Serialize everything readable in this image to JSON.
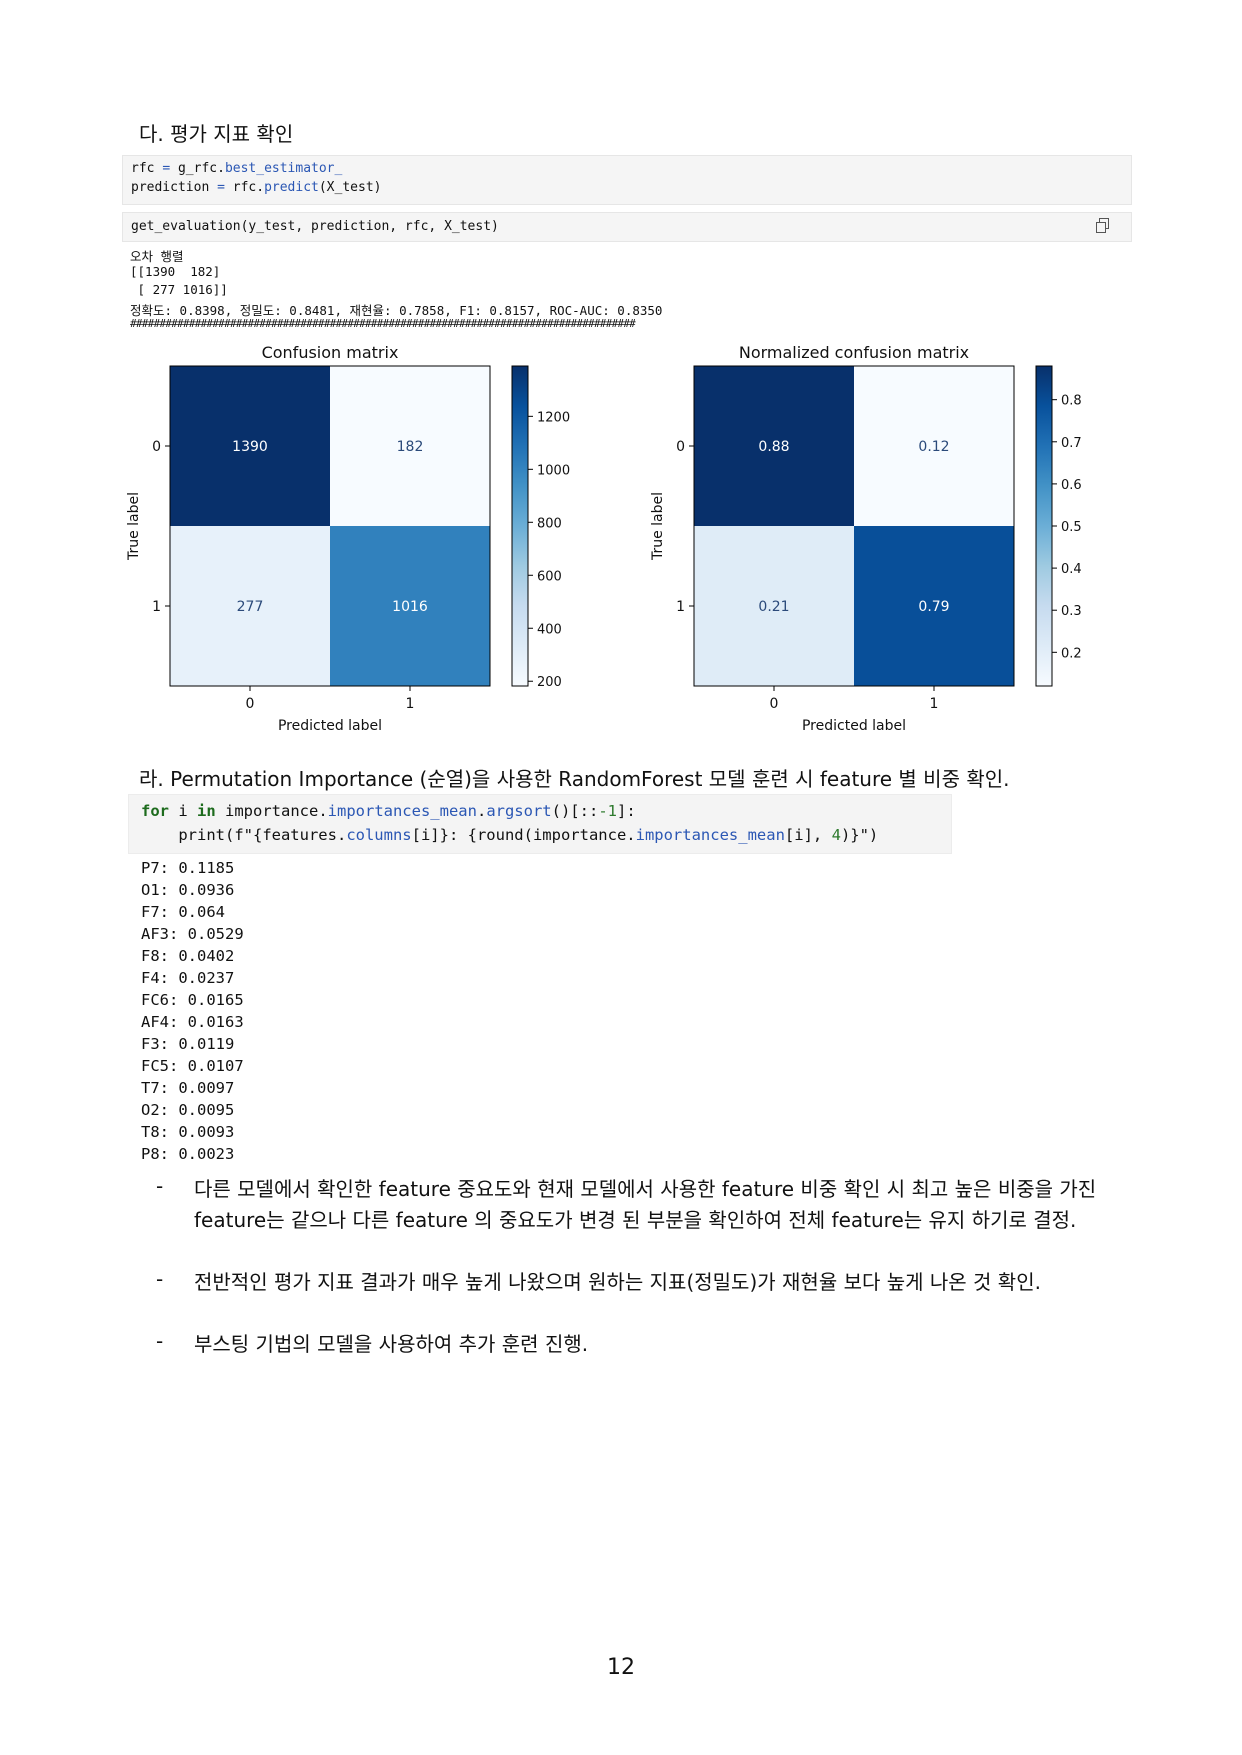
{
  "section_da": {
    "heading": "다. 평가 지표 확인",
    "code_lines": [
      {
        "pre": "rfc ",
        "op": "= ",
        "mid": "g_rfc.",
        "call": "best_estimator_",
        "post": ""
      },
      {
        "pre": "prediction ",
        "op": "= ",
        "mid": "rfc.",
        "call": "predict",
        "post": "(X_test)"
      }
    ],
    "code2": "get_evaluation(y_test, prediction, rfc, X_test)",
    "output_lines": [
      "오차 행렬",
      "[[1390  182]",
      " [ 277 1016]]",
      "정확도: 0.8398, 정밀도: 0.8481, 재현율: 0.7858, F1: 0.8157, ROC-AUC: 0.8350",
      "######################################################################################"
    ]
  },
  "chart_data": [
    {
      "type": "heatmap",
      "title": "Confusion matrix",
      "xlabel": "Predicted label",
      "ylabel": "True label",
      "x_ticks": [
        "0",
        "1"
      ],
      "y_ticks": [
        "0",
        "1"
      ],
      "values": [
        [
          1390,
          182
        ],
        [
          277,
          1016
        ]
      ],
      "cell_labels": [
        [
          "1390",
          "182"
        ],
        [
          "277",
          "1016"
        ]
      ],
      "colorbar_range": [
        182,
        1390
      ],
      "colorbar_ticks": [
        "1200",
        "1000",
        "800",
        "600",
        "400",
        "200"
      ],
      "colormap": "Blues"
    },
    {
      "type": "heatmap",
      "title": "Normalized confusion matrix",
      "xlabel": "Predicted label",
      "ylabel": "True label",
      "x_ticks": [
        "0",
        "1"
      ],
      "y_ticks": [
        "0",
        "1"
      ],
      "values": [
        [
          0.88,
          0.12
        ],
        [
          0.21,
          0.79
        ]
      ],
      "cell_labels": [
        [
          "0.88",
          "0.12"
        ],
        [
          "0.21",
          "0.79"
        ]
      ],
      "colorbar_range": [
        0.12,
        0.88
      ],
      "colorbar_ticks": [
        "0.8",
        "0.7",
        "0.6",
        "0.5",
        "0.4",
        "0.3",
        "0.2"
      ],
      "colormap": "Blues"
    }
  ],
  "section_ra": {
    "heading": "라. Permutation Importance (순열)을 사용한 RandomForest 모델 훈련 시  feature 별 비중 확인.",
    "code": {
      "line1": {
        "for": "for",
        "a": " i ",
        "in": "in",
        "b": " importance.",
        "c": "importances_mean",
        "d": ".",
        "e": "argsort",
        "f": "()[::",
        "g": "-1",
        "h": "]:"
      },
      "line2": {
        "a": "    print(f\"{features.",
        "b": "columns",
        "c": "[i]}: {round(importance.",
        "d": "importances_mean",
        "e": "[i], ",
        "f": "4",
        "g": ")}\")"
      }
    },
    "importances": [
      "P7: 0.1185",
      "O1: 0.0936",
      "F7: 0.064",
      "AF3: 0.0529",
      "F8: 0.0402",
      "F4: 0.0237",
      "FC6: 0.0165",
      "AF4: 0.0163",
      "F3: 0.0119",
      "FC5: 0.0107",
      "T7: 0.0097",
      "O2: 0.0095",
      "T8: 0.0093",
      "P8: 0.0023"
    ],
    "bullets": [
      {
        "dash": "-",
        "text": "다른 모델에서 확인한 feature 중요도와 현재 모델에서 사용한 feature 비중 확인 시 최고 높은 비중을 가진 feature는 같으나 다른 feature 의 중요도가 변경 된 부분을 확인하여 전체 feature는 유지 하기로 결정."
      },
      {
        "dash": "-",
        "text": "전반적인 평가 지표 결과가 매우 높게 나왔으며 원하는 지표(정밀도)가 재현율 보다 높게 나온 것 확인."
      },
      {
        "dash": "-",
        "text": "부스팅 기법의 모델을 사용하여 추가 훈련 진행."
      }
    ]
  },
  "page_number": "12"
}
